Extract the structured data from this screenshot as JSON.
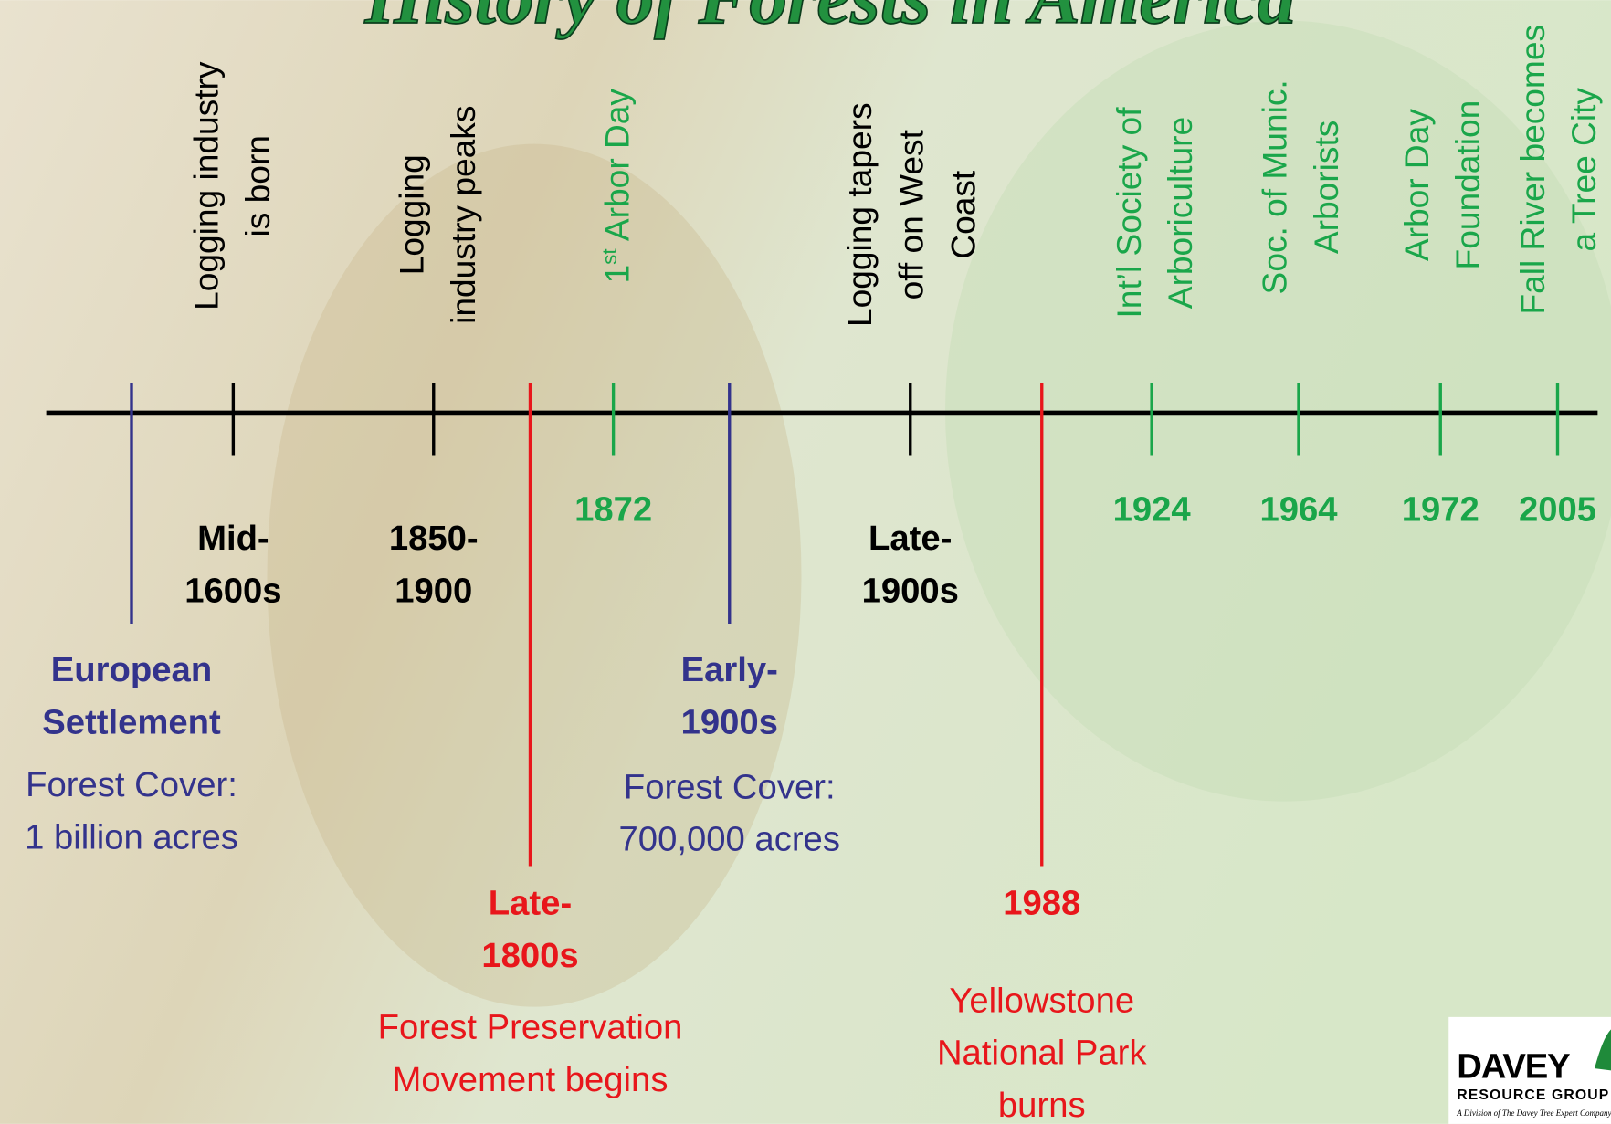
{
  "title": "History of Forests in America",
  "top_labels": [
    [
      "Logging industry",
      "is born"
    ],
    [
      "Logging",
      "industry peaks"
    ],
    [
      "1",
      "st",
      " Arbor Day"
    ],
    [
      "Logging tapers",
      "off on West",
      "Coast"
    ],
    [
      "Int’l Society of",
      "Arboriculture"
    ],
    [
      "Soc. of Munic.",
      "Arborists"
    ],
    [
      "Arbor Day",
      "Foundation"
    ],
    [
      "Fall River becomes",
      "a Tree City"
    ]
  ],
  "timeline_dates": [
    [
      "Mid-",
      "1600s"
    ],
    [
      "1850-",
      "1900"
    ],
    [
      "1872"
    ],
    [
      "Late-",
      "1900s"
    ],
    [
      "1924"
    ],
    [
      "1964"
    ],
    [
      "1972"
    ],
    [
      "2005"
    ]
  ],
  "lower_events": [
    {
      "date": [
        "European",
        "Settlement"
      ],
      "text": [
        "Forest Cover:",
        "1 billion acres"
      ]
    },
    {
      "date": [
        "Late-",
        "1800s"
      ],
      "text": [
        "Forest Preservation",
        "Movement begins"
      ]
    },
    {
      "date": [
        "Early-",
        "1900s"
      ],
      "text": [
        "Forest Cover:",
        "700,000 acres"
      ]
    },
    {
      "date": [
        "1988"
      ],
      "text": [
        "Yellowstone",
        "National Park",
        "burns"
      ]
    }
  ],
  "logo": {
    "name": "DAVEY",
    "subtitle": "RESOURCE GROUP",
    "tagline": "A Division of The Davey Tree Expert Company"
  }
}
